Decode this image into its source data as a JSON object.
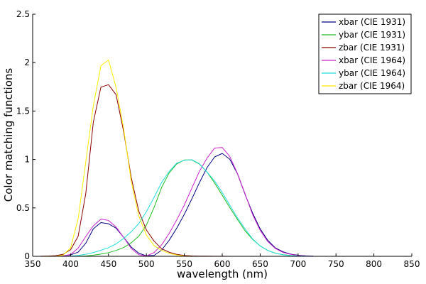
{
  "chart_data": {
    "type": "line",
    "title": "",
    "xlabel": "wavelength (nm)",
    "ylabel": "Color matching functions",
    "xlim": [
      350,
      850
    ],
    "ylim": [
      0,
      2.5
    ],
    "x_ticks": [
      350,
      400,
      450,
      500,
      550,
      600,
      650,
      700,
      750,
      800,
      850
    ],
    "y_ticks": [
      0,
      0.5,
      1,
      1.5,
      2,
      2.5
    ],
    "y_tick_labels": [
      "0",
      "0.5",
      "1",
      "1.5",
      "2",
      "2.5"
    ],
    "grid": false,
    "legend_position": "top-right",
    "x": [
      360,
      370,
      380,
      390,
      400,
      410,
      420,
      430,
      440,
      450,
      460,
      470,
      480,
      490,
      500,
      510,
      520,
      530,
      540,
      550,
      560,
      570,
      580,
      590,
      600,
      610,
      620,
      630,
      640,
      650,
      660,
      670,
      680,
      690,
      700,
      710,
      720
    ],
    "series": [
      {
        "name": "xbar (CIE 1931)",
        "color": "#000080",
        "values": [
          0.0001,
          0.0006,
          0.0014,
          0.0042,
          0.0143,
          0.0435,
          0.1344,
          0.2839,
          0.3483,
          0.3362,
          0.2908,
          0.1954,
          0.0956,
          0.032,
          0.0049,
          0.0093,
          0.0633,
          0.1655,
          0.2904,
          0.4334,
          0.5945,
          0.7621,
          0.9163,
          1.0263,
          1.0622,
          1.0026,
          0.8544,
          0.6424,
          0.4479,
          0.2835,
          0.1649,
          0.0874,
          0.0468,
          0.0227,
          0.0114,
          0.0058,
          0.0029
        ]
      },
      {
        "name": "ybar (CIE 1931)",
        "color": "#22bb22",
        "values": [
          0.0,
          0.0,
          0.0,
          0.0001,
          0.0004,
          0.0012,
          0.004,
          0.0116,
          0.023,
          0.038,
          0.06,
          0.091,
          0.139,
          0.208,
          0.323,
          0.503,
          0.71,
          0.862,
          0.954,
          0.995,
          0.995,
          0.952,
          0.87,
          0.757,
          0.631,
          0.503,
          0.381,
          0.265,
          0.175,
          0.107,
          0.061,
          0.032,
          0.017,
          0.0082,
          0.0041,
          0.0021,
          0.001
        ]
      },
      {
        "name": "zbar (CIE 1931)",
        "color": "#8b0000",
        "values": [
          0.0006,
          0.0029,
          0.0065,
          0.0201,
          0.0679,
          0.2074,
          0.6456,
          1.3856,
          1.7471,
          1.7721,
          1.6692,
          1.2876,
          0.813,
          0.4652,
          0.272,
          0.1582,
          0.0782,
          0.0422,
          0.0203,
          0.0087,
          0.0039,
          0.0021,
          0.0017,
          0.0011,
          0.0008,
          0.0003,
          0.0002,
          0.0,
          0.0,
          0.0,
          0.0,
          0.0,
          0.0,
          0.0,
          0.0,
          0.0,
          0.0
        ]
      },
      {
        "name": "xbar (CIE 1964)",
        "color": "#cc22cc",
        "values": [
          0.0,
          0.0001,
          0.0002,
          0.0024,
          0.0191,
          0.0847,
          0.2045,
          0.3147,
          0.3837,
          0.3707,
          0.3023,
          0.1956,
          0.0805,
          0.0162,
          0.0038,
          0.0375,
          0.1177,
          0.2365,
          0.3768,
          0.5298,
          0.7052,
          0.8787,
          1.0142,
          1.1185,
          1.124,
          1.0305,
          0.8563,
          0.6475,
          0.4316,
          0.2683,
          0.1526,
          0.0813,
          0.0409,
          0.0199,
          0.0096,
          0.0046,
          0.0022
        ]
      },
      {
        "name": "ybar (CIE 1964)",
        "color": "#22dddd",
        "values": [
          0.0,
          0.0,
          0.0,
          0.0003,
          0.002,
          0.0088,
          0.0214,
          0.0387,
          0.0621,
          0.0895,
          0.1282,
          0.1852,
          0.2536,
          0.3391,
          0.4608,
          0.6067,
          0.7618,
          0.8752,
          0.962,
          0.9918,
          0.9973,
          0.9556,
          0.8689,
          0.7774,
          0.6583,
          0.528,
          0.3981,
          0.2835,
          0.1798,
          0.1076,
          0.0603,
          0.0318,
          0.0159,
          0.0077,
          0.0037,
          0.0018,
          0.0008
        ]
      },
      {
        "name": "zbar (CIE 1964)",
        "color": "#ffee00",
        "values": [
          0.0,
          0.0005,
          0.0007,
          0.0107,
          0.086,
          0.3894,
          0.9725,
          1.5535,
          1.9673,
          2.0273,
          1.7454,
          1.3176,
          0.7721,
          0.4153,
          0.2185,
          0.112,
          0.0607,
          0.0305,
          0.0137,
          0.004,
          0.0,
          0.0,
          0.0,
          0.0,
          0.0,
          0.0,
          0.0,
          0.0,
          0.0,
          0.0,
          0.0,
          0.0,
          0.0,
          0.0,
          0.0,
          0.0,
          0.0
        ]
      }
    ]
  }
}
